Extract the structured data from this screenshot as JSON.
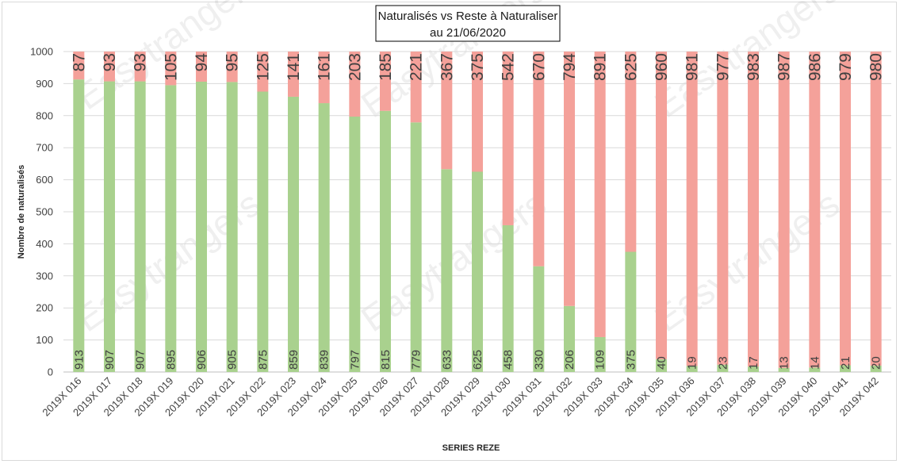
{
  "chart_data": {
    "type": "bar",
    "stacked": true,
    "title_line1": "Naturalisés vs Reste à Naturaliser",
    "title_line2": "au 21/06/2020",
    "xlabel": "SERIES REZE",
    "ylabel": "Nombre de naturalisés",
    "ylim": [
      0,
      1000
    ],
    "yticks": [
      "0",
      "100",
      "200",
      "300",
      "400",
      "500",
      "600",
      "700",
      "800",
      "900",
      "1000"
    ],
    "grid": true,
    "categories": [
      "2019X 016",
      "2019X 017",
      "2019X 018",
      "2019X 019",
      "2019X 020",
      "2019X 021",
      "2019X 022",
      "2019X 023",
      "2019X 024",
      "2019X 025",
      "2019X 026",
      "2019X 027",
      "2019X 028",
      "2019X 029",
      "2019X 030",
      "2019X 031",
      "2019X 032",
      "2019X 033",
      "2019X 034",
      "2019X 035",
      "2019X 036",
      "2019X 037",
      "2019X 038",
      "2019X 039",
      "2019X 040",
      "2019X 041",
      "2019X 042"
    ],
    "series": [
      {
        "color": "#a9d18e",
        "values": [
          913,
          907,
          907,
          895,
          906,
          905,
          875,
          859,
          839,
          797,
          815,
          779,
          633,
          625,
          458,
          330,
          206,
          109,
          375,
          40,
          19,
          23,
          17,
          13,
          14,
          21,
          20
        ]
      },
      {
        "color": "#f4a19a",
        "values": [
          87,
          93,
          93,
          105,
          94,
          95,
          125,
          141,
          161,
          203,
          185,
          221,
          367,
          375,
          542,
          670,
          794,
          891,
          625,
          960,
          981,
          977,
          983,
          987,
          986,
          979,
          980
        ]
      }
    ],
    "watermark": "Easytrangers"
  }
}
